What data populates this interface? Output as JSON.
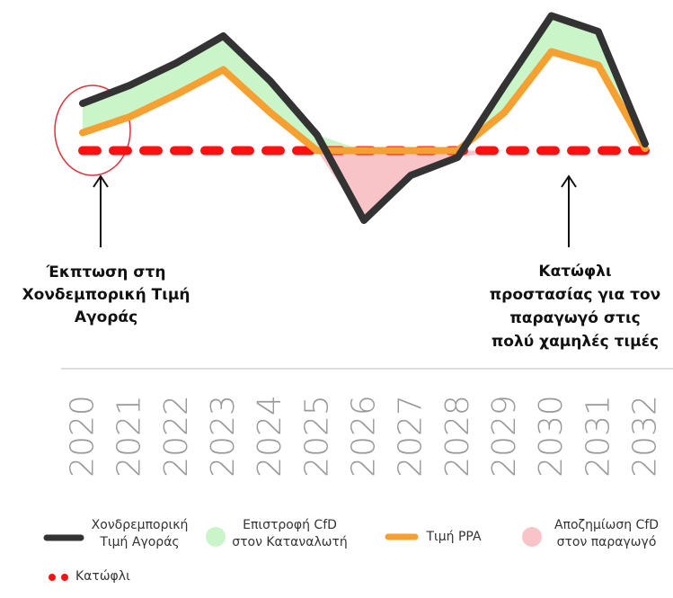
{
  "chart_data": {
    "type": "line",
    "categories": [
      "2020",
      "2021",
      "2022",
      "2023",
      "2024",
      "2025",
      "2026",
      "2027",
      "2028",
      "2029",
      "2030",
      "2031",
      "2032"
    ],
    "ylim": [
      0,
      100
    ],
    "series": [
      {
        "name": "Χονδρεμπορική Τιμή Αγοράς",
        "color": "#333333",
        "values": [
          58,
          66,
          76,
          88,
          68,
          44,
          6,
          26,
          34,
          66,
          97,
          90,
          40
        ]
      },
      {
        "name": "Τιμή PPA",
        "color": "#f5a030",
        "values": [
          45,
          52,
          62,
          73,
          54,
          37,
          37,
          37,
          37,
          54,
          81,
          75,
          38
        ]
      },
      {
        "name": "Κατώφλι",
        "color": "#ff1010",
        "dashed": true,
        "values": [
          37,
          37,
          37,
          37,
          37,
          37,
          37,
          37,
          37,
          37,
          37,
          37,
          37
        ]
      }
    ],
    "areas": [
      {
        "name": "Επιστροφή CfD στον Καταναλωτή",
        "color": "#c9f5c9"
      },
      {
        "name": "Αποζημίωση CfD στον παραγωγό",
        "color": "#f9c4c8"
      }
    ],
    "annotations": [
      {
        "lines": [
          "Έκπτωση στη",
          "Χονδεμπορική Τιμή",
          "Αγοράς"
        ]
      },
      {
        "lines": [
          "Κατώφλι",
          "προστασίας για τον",
          "παραγωγό στις",
          "πολύ χαμηλές τιμές"
        ]
      }
    ]
  }
}
